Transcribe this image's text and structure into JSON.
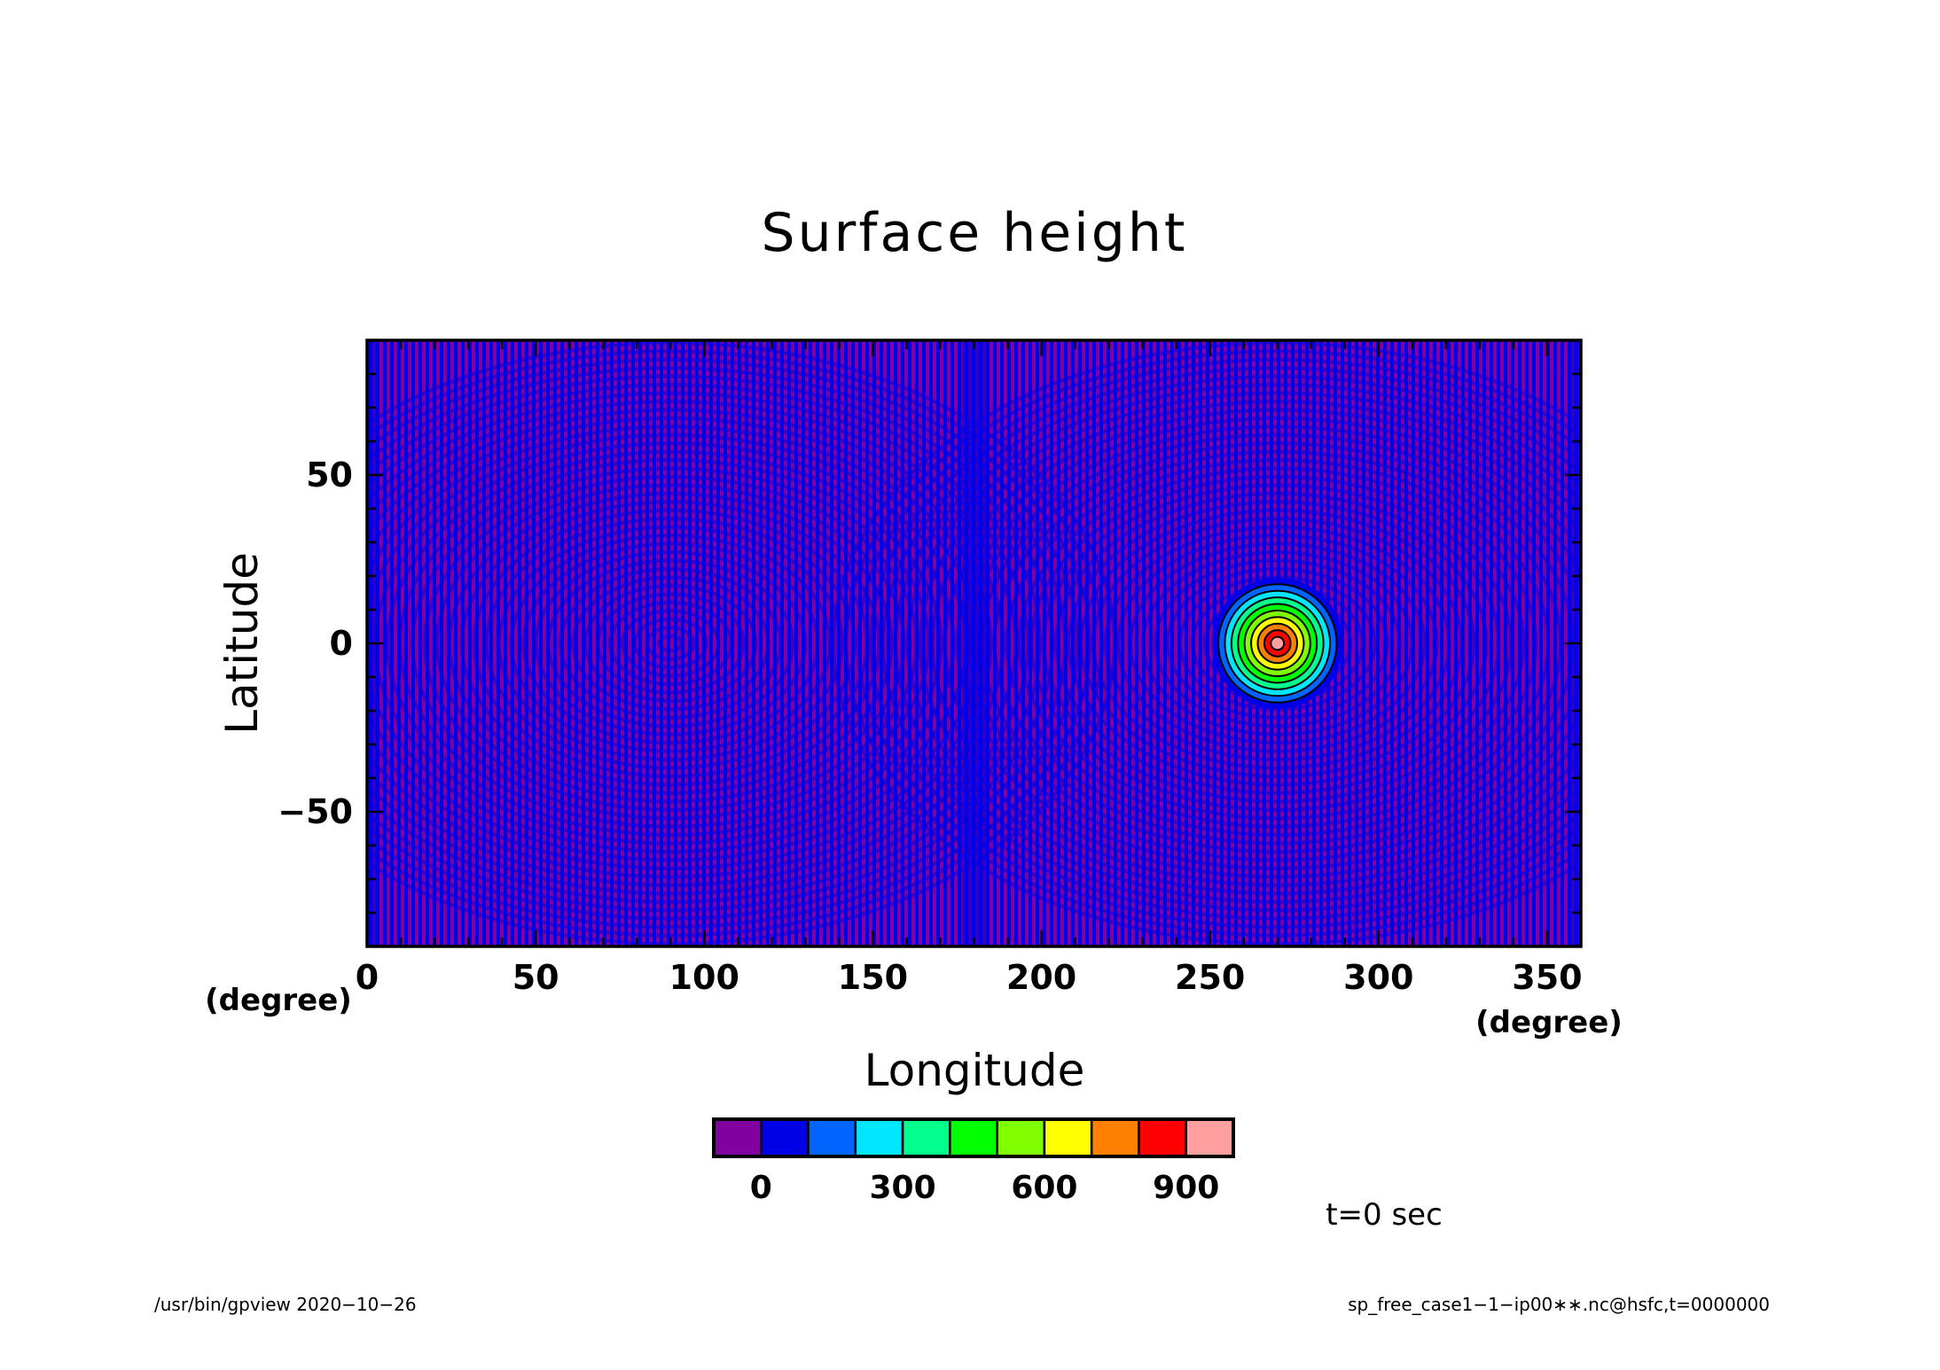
{
  "chart_data": {
    "type": "heatmap",
    "title": "Surface height",
    "xlabel": "Longitude",
    "ylabel": "Latitude",
    "x_unit": "(degree)",
    "y_unit": "(degree)",
    "xlim": [
      0,
      360
    ],
    "ylim": [
      -90,
      90
    ],
    "x_ticks": [
      0,
      50,
      100,
      150,
      200,
      250,
      300,
      350
    ],
    "y_ticks": [
      -50,
      0,
      50
    ],
    "x_tick_labels": [
      "0",
      "50",
      "100",
      "150",
      "200",
      "250",
      "300",
      "350"
    ],
    "y_tick_labels": [
      "−50",
      "0",
      "50"
    ],
    "background_fill": [
      "#8000a0",
      "#0000e6"
    ],
    "feature": {
      "center_lon": 270,
      "center_lat": 0,
      "peak": 1000,
      "contour_levels": [
        100,
        200,
        300,
        400,
        500,
        600,
        700,
        800,
        900
      ]
    },
    "colorbar": {
      "bin_edges": [
        -100,
        0,
        100,
        200,
        300,
        400,
        500,
        600,
        700,
        800,
        900,
        1000
      ],
      "colors": [
        "#8000a0",
        "#0000e6",
        "#0064ff",
        "#00e6ff",
        "#00ff8c",
        "#00ff00",
        "#80ff00",
        "#ffff00",
        "#ff8000",
        "#ff0000",
        "#ffa0a0"
      ],
      "tick_values": [
        0,
        300,
        600,
        900
      ],
      "tick_labels": [
        "0",
        "300",
        "600",
        "900"
      ]
    },
    "time_label": "t=0 sec"
  },
  "footer": {
    "left": "/usr/bin/gpview   2020−10−26",
    "right": "sp_free_case1−1−ip00∗∗.nc@hsfc,t=0000000"
  }
}
